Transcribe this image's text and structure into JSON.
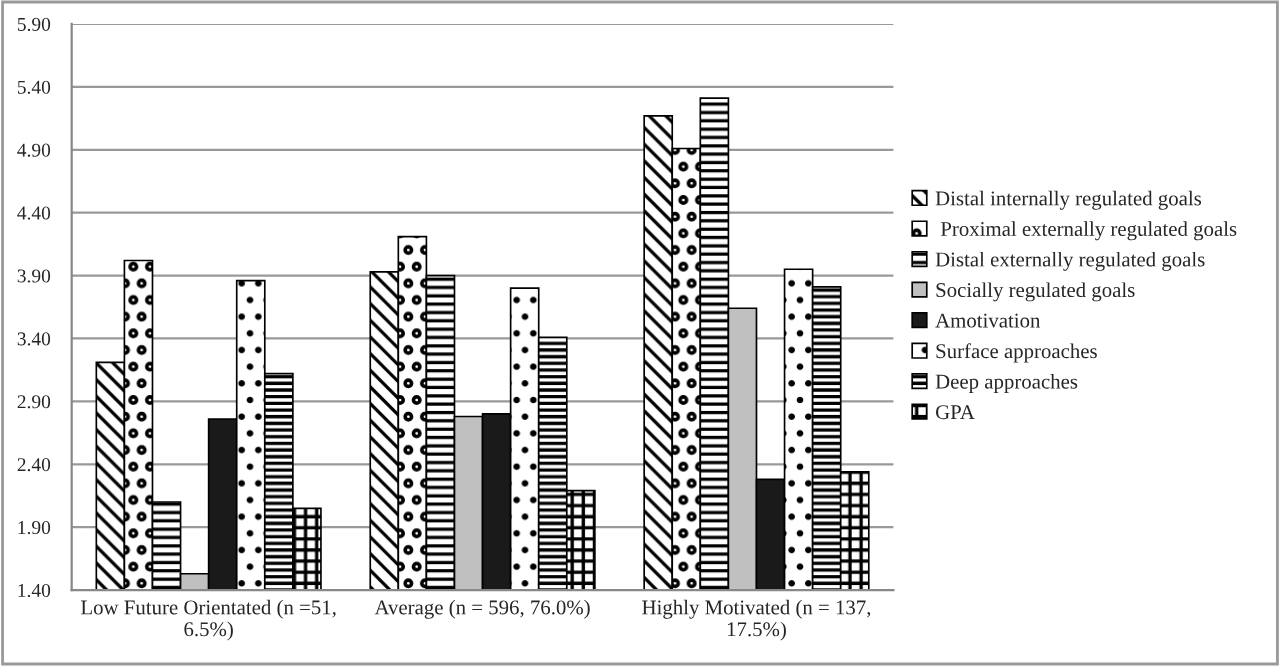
{
  "chart_data": {
    "type": "bar",
    "categories": [
      "Low Future Orientated (n =51,\n6.5%)",
      "Average (n = 596, 76.0%)",
      "Highly Motivated (n = 137,\n17.5%)"
    ],
    "series": [
      {
        "name": "Distal internally regulated goals",
        "color": "#000000",
        "values": [
          3.21,
          3.93,
          5.17
        ]
      },
      {
        "name": " Proximal externally regulated goals",
        "color": "#000000",
        "values": [
          4.02,
          4.21,
          4.91
        ]
      },
      {
        "name": "Distal externally regulated goals",
        "color": "#000000",
        "values": [
          2.1,
          3.9,
          5.31
        ]
      },
      {
        "name": "Socially regulated goals",
        "color": "#c0c0c0",
        "values": [
          1.53,
          2.78,
          3.64
        ]
      },
      {
        "name": "Amotivation",
        "color": "#1a1a1a",
        "values": [
          2.76,
          2.8,
          2.28
        ]
      },
      {
        "name": "Surface approaches",
        "color": "#000000",
        "values": [
          3.86,
          3.8,
          3.95
        ]
      },
      {
        "name": "Deep approaches",
        "color": "#000000",
        "values": [
          3.12,
          3.41,
          3.81
        ]
      },
      {
        "name": "GPA",
        "color": "#000000",
        "values": [
          2.05,
          2.19,
          2.34
        ]
      }
    ],
    "ylim": [
      1.4,
      5.9
    ],
    "yticks": [
      {
        "value": 1.4,
        "label": "1.40"
      },
      {
        "value": 1.9,
        "label": "1.90"
      },
      {
        "value": 2.4,
        "label": "2.40"
      },
      {
        "value": 2.9,
        "label": "2.90"
      },
      {
        "value": 3.4,
        "label": "3.40"
      },
      {
        "value": 3.9,
        "label": "3.90"
      },
      {
        "value": 4.4,
        "label": "4.40"
      },
      {
        "value": 4.9,
        "label": "4.90"
      },
      {
        "value": 5.4,
        "label": "5.40"
      },
      {
        "value": 5.9,
        "label": "5.90"
      }
    ],
    "grid": "y",
    "legend": "right"
  }
}
